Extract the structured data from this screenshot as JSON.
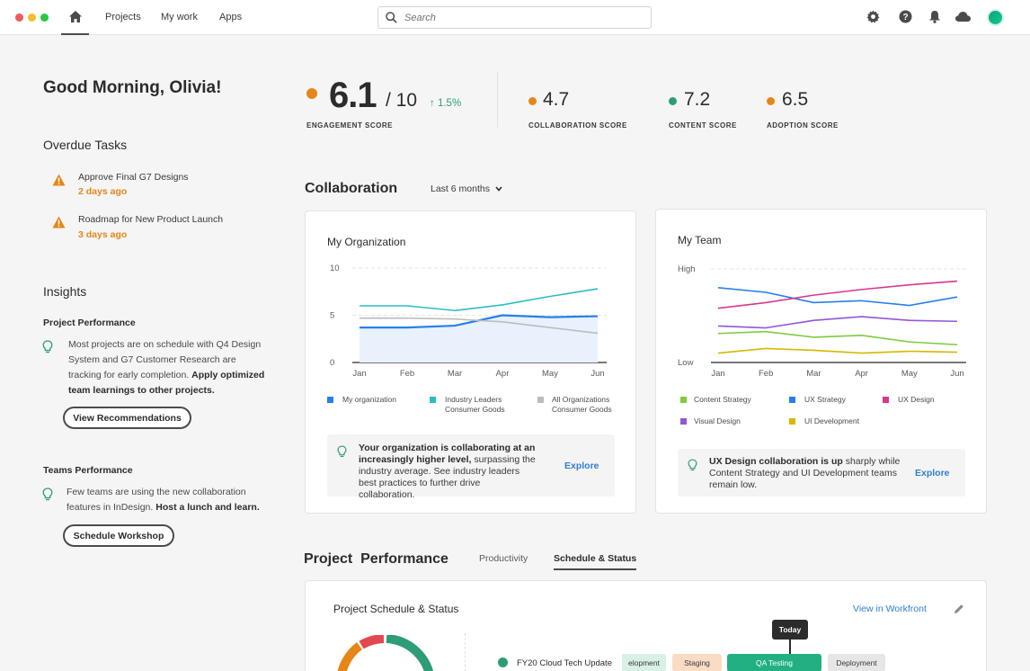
{
  "window": {
    "dots": [
      "#ee5b58",
      "#f5bd2e",
      "#2bc840"
    ]
  },
  "nav": {
    "home_icon": "home-icon",
    "links": [
      "Projects",
      "My work",
      "Apps"
    ],
    "search_placeholder": "Search",
    "icons": [
      "gear-icon",
      "help-icon",
      "bell-icon",
      "cloud-icon"
    ]
  },
  "greeting": "Good Morning, Olivia!",
  "overdue": {
    "title": "Overdue Tasks",
    "tasks": [
      {
        "title": "Approve Final G7 Designs",
        "due": "2 days ago"
      },
      {
        "title": "Roadmap for New Product Launch",
        "due": "3 days ago"
      }
    ]
  },
  "insights": {
    "title": "Insights",
    "project": {
      "heading": "Project Performance",
      "text": "Most projects are on schedule  with Q4 Design System and G7 Customer Research are tracking for early completion.",
      "bold": "Apply optimized team learnings to other projects.",
      "button": "View Recommendations"
    },
    "teams": {
      "heading": "Teams Performance",
      "text": "Few teams are using the new collaboration features in InDesign.",
      "bold": "Host a lunch and learn.",
      "button": "Schedule Workshop"
    }
  },
  "scores": {
    "engagement": {
      "value": "6.1",
      "outof": "/ 10",
      "delta": "1.5%",
      "label": "ENGAGEMENT SCORE",
      "color": "#e68619"
    },
    "collaboration": {
      "value": "4.7",
      "label": "COLLABORATION SCORE",
      "color": "#e68619"
    },
    "content": {
      "value": "7.2",
      "label": "CONTENT SCORE",
      "color": "#2d9d78"
    },
    "adoption": {
      "value": "6.5",
      "label": "ADOPTION SCORE",
      "color": "#e68619"
    }
  },
  "collaboration": {
    "title": "Collaboration",
    "period": "Last 6 months",
    "org": {
      "title": "My Organization",
      "legend": [
        {
          "label": "My organization",
          "color": "#2680eb"
        },
        {
          "label": "Industry Leaders\nConsumer Goods",
          "color": "#2bbdc1"
        },
        {
          "label": "All Organizations\nConsumer Goods",
          "color": "#bdbdbd"
        }
      ],
      "note_bold": "Your organization is collaborating at an increasingly higher level,",
      "note_text": " surpassing the industry average. See industry leaders best practices to further drive collaboration.",
      "explore": "Explore"
    },
    "team": {
      "title": "My Team",
      "legend": [
        {
          "label": "Content Strategy",
          "color": "#7fcb3f"
        },
        {
          "label": "UX Strategy",
          "color": "#2680eb"
        },
        {
          "label": "UX Design",
          "color": "#d83790"
        },
        {
          "label": "Visual Design",
          "color": "#9256d9"
        },
        {
          "label": "UI Development",
          "color": "#d8b800"
        }
      ],
      "note_bold": "UX Design collaboration is up",
      "note_text": " sharply while Content Strategy and UI Development teams remain low.",
      "explore": "Explore"
    }
  },
  "chart_data": [
    {
      "type": "area",
      "title": "My Organization",
      "categories": [
        "Jan",
        "Feb",
        "Mar",
        "Apr",
        "May",
        "Jun"
      ],
      "ylim": [
        0,
        10
      ],
      "yticks": [
        "10",
        "5",
        "0"
      ],
      "series": [
        {
          "name": "My organization",
          "values": [
            3.7,
            3.7,
            3.9,
            5.0,
            4.8,
            4.9
          ]
        },
        {
          "name": "Industry Leaders Consumer Goods",
          "values": [
            6.0,
            6.0,
            5.5,
            6.1,
            7.0,
            7.8
          ]
        },
        {
          "name": "All Organizations Consumer Goods",
          "values": [
            4.7,
            4.7,
            4.6,
            4.3,
            3.7,
            3.1
          ]
        }
      ]
    },
    {
      "type": "line",
      "title": "My Team",
      "categories": [
        "Jan",
        "Feb",
        "Mar",
        "Apr",
        "May",
        "Jun"
      ],
      "ylim": [
        0,
        100
      ],
      "yticks": [
        "High",
        "Low"
      ],
      "series": [
        {
          "name": "Content Strategy",
          "values": [
            31,
            33,
            27,
            29,
            22,
            19
          ]
        },
        {
          "name": "UX Strategy",
          "values": [
            80,
            75,
            64,
            66,
            61,
            70
          ]
        },
        {
          "name": "UX Design",
          "values": [
            58,
            64,
            72,
            78,
            83,
            87
          ]
        },
        {
          "name": "Visual Design",
          "values": [
            39,
            37,
            45,
            49,
            45,
            44
          ]
        },
        {
          "name": "UI Development",
          "values": [
            10,
            15,
            13,
            10,
            12,
            11
          ]
        }
      ]
    }
  ],
  "project_performance": {
    "title": "Project  Performance",
    "tabs": [
      "Productivity",
      "Schedule & Status"
    ],
    "card_title": "Project Schedule & Status",
    "view_link": "View in Workfront",
    "today": "Today",
    "row_label": "FY20 Cloud Tech Update",
    "stages": [
      "elopment",
      "Staging",
      "QA Testing",
      "Deployment"
    ]
  }
}
